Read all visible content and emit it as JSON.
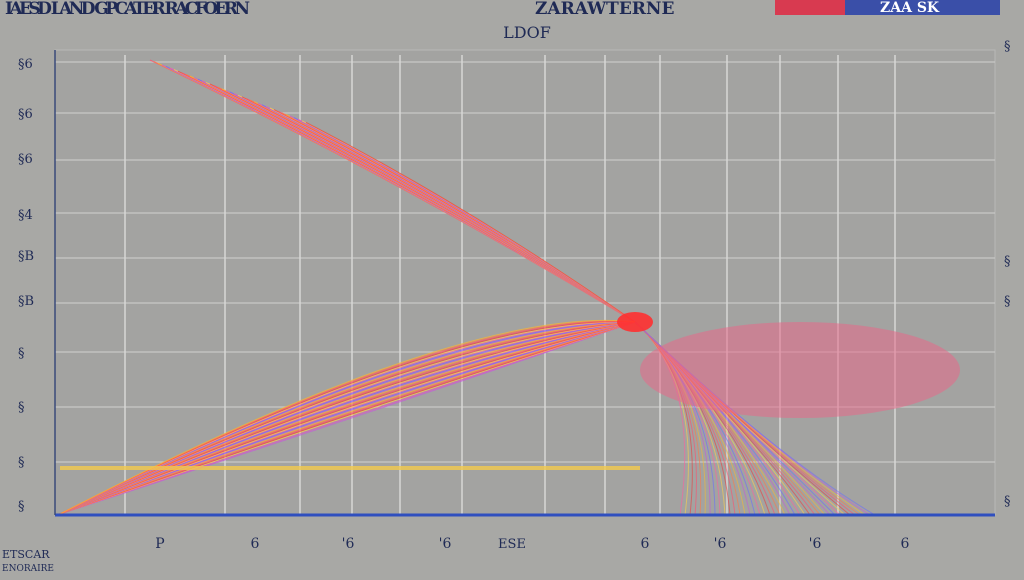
{
  "header": {
    "left": "IAESD LAND GPCATER RACFOERN",
    "center": "ZARAWTERNE",
    "badge": "ZAA SK",
    "title": "LDOF"
  },
  "y_labels": [
    "§6",
    "§6",
    "§6",
    "§4",
    "§B",
    "§B",
    "§",
    "§",
    "§",
    "§"
  ],
  "right_labels": [
    "§",
    "§",
    "§",
    "§"
  ],
  "x_labels": [
    "P",
    "6",
    "'6",
    "'6",
    "6",
    "'6",
    "'6",
    "6"
  ],
  "x_title": "ESE",
  "footer": {
    "line1": "ETSCAR",
    "line2": "ENORAIRE"
  }
}
